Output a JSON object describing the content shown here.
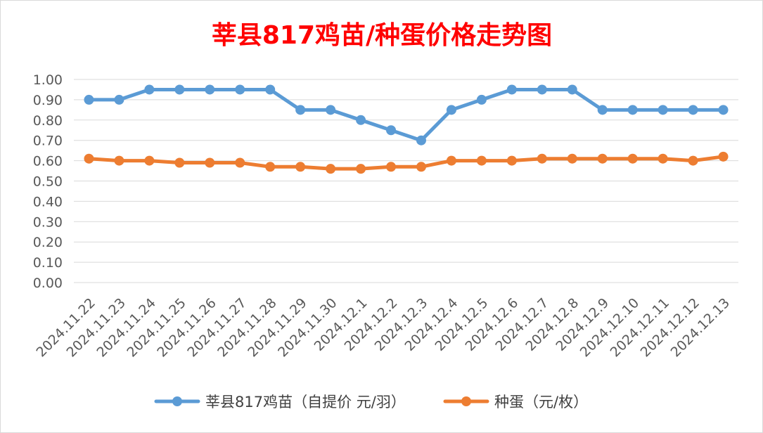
{
  "chart_data": {
    "type": "line",
    "title": "莘县817鸡苗/种蛋价格走势图",
    "xlabel": "",
    "ylabel": "",
    "ylim": [
      0,
      1.0
    ],
    "yticks": [
      "0.00",
      "0.10",
      "0.20",
      "0.30",
      "0.40",
      "0.50",
      "0.60",
      "0.70",
      "0.80",
      "0.90",
      "1.00"
    ],
    "categories": [
      "2024.11.22",
      "2024.11.23",
      "2024.11.24",
      "2024.11.25",
      "2024.11.26",
      "2024.11.27",
      "2024.11.28",
      "2024.11.29",
      "2024.11.30",
      "2024.12.1",
      "2024.12.2",
      "2024.12.3",
      "2024.12.4",
      "2024.12.5",
      "2024.12.6",
      "2024.12.7",
      "2024.12.8",
      "2024.12.9",
      "2024.12.10",
      "2024.12.11",
      "2024.12.12",
      "2024.12.13"
    ],
    "series": [
      {
        "name": "莘县817鸡苗（自提价 元/羽）",
        "color": "#5b9bd5",
        "values": [
          0.9,
          0.9,
          0.95,
          0.95,
          0.95,
          0.95,
          0.95,
          0.85,
          0.85,
          0.8,
          0.75,
          0.7,
          0.85,
          0.9,
          0.95,
          0.95,
          0.95,
          0.85,
          0.85,
          0.85,
          0.85,
          0.85
        ]
      },
      {
        "name": "种蛋（元/枚）",
        "color": "#ed7d31",
        "values": [
          0.61,
          0.6,
          0.6,
          0.59,
          0.59,
          0.59,
          0.57,
          0.57,
          0.56,
          0.56,
          0.57,
          0.57,
          0.6,
          0.6,
          0.6,
          0.61,
          0.61,
          0.61,
          0.61,
          0.61,
          0.6,
          0.62
        ]
      }
    ],
    "grid": true,
    "legend": "bottom",
    "title_color": "#ff0000"
  }
}
